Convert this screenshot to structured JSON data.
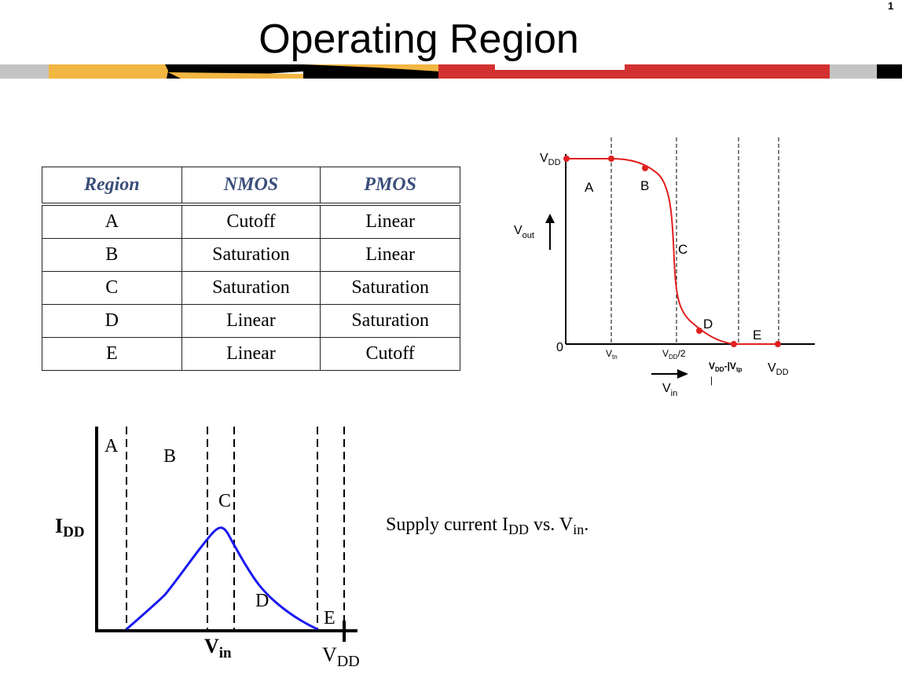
{
  "title": "Operating Region",
  "page_number": "1",
  "colors": {
    "banner_gold": "#f2b642",
    "banner_black": "#000000",
    "banner_red": "#d33131",
    "banner_gray": "#c4c4c4",
    "vtc_curve": "#e02020",
    "idd_curve": "#1a1aee",
    "table_header": "#3a4e7a"
  },
  "table": {
    "headers": [
      "Region",
      "NMOS",
      "PMOS"
    ],
    "rows": [
      [
        "A",
        "Cutoff",
        "Linear"
      ],
      [
        "B",
        "Saturation",
        "Linear"
      ],
      [
        "C",
        "Saturation",
        "Saturation"
      ],
      [
        "D",
        "Linear",
        "Saturation"
      ],
      [
        "E",
        "Linear",
        "Cutoff"
      ]
    ]
  },
  "vtc": {
    "y_top_main": "V",
    "y_top_sub": "DD",
    "y_axis_main": "V",
    "y_axis_sub": "out",
    "origin": "0",
    "regions": [
      "A",
      "B",
      "C",
      "D",
      "E"
    ],
    "x_tick1_main": "V",
    "x_tick1_sub": "tn",
    "x_tick2_main": "V",
    "x_tick2_sub": "DD",
    "x_tick2_suffix": "/2",
    "x_tick3_main": "V",
    "x_tick3_sub": "DD",
    "x_tick3_mid": "-|V",
    "x_tick3_sub2": "tp",
    "x_tick3_tail": "|",
    "x_tick4_main": "V",
    "x_tick4_sub": "DD",
    "x_axis_main": "V",
    "x_axis_sub": "in"
  },
  "idd_plot": {
    "y_label_main": "I",
    "y_label_sub": "DD",
    "x_label_main": "V",
    "x_label_sub": "in",
    "x_end_main": "V",
    "x_end_sub": "DD",
    "regions": [
      "A",
      "B",
      "C",
      "D",
      "E"
    ]
  },
  "caption": {
    "pre": "Supply current I",
    "sub1": "DD",
    "mid": " vs. V",
    "sub2": "in",
    "post": "."
  }
}
